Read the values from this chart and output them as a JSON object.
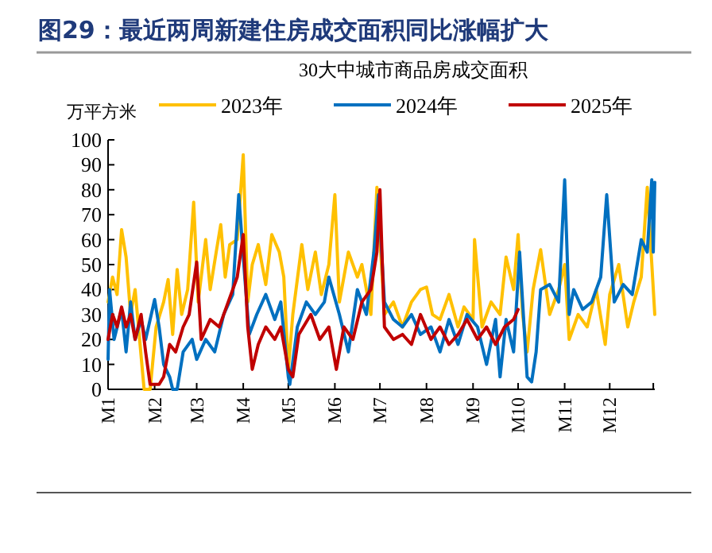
{
  "chart_data": {
    "type": "line",
    "title": "图29：最近两周新建住房成交面积同比涨幅扩大",
    "ylabel": "万平方米",
    "legend_title": "30大中城市商品房成交面积",
    "legend": "top",
    "xlim": [
      "--01-01",
      "--12-31"
    ],
    "ylim": [
      0,
      100
    ],
    "yticks": [
      0,
      10,
      20,
      30,
      40,
      50,
      60,
      70,
      80,
      90,
      100
    ],
    "xticks": [
      {
        "value": "--01-01",
        "label": "M1"
      },
      {
        "value": "--02-01",
        "label": "M2"
      },
      {
        "value": "--03-01",
        "label": "M3"
      },
      {
        "value": "--04-01",
        "label": "M4"
      },
      {
        "value": "--05-01",
        "label": "M5"
      },
      {
        "value": "--06-01",
        "label": "M6"
      },
      {
        "value": "--07-01",
        "label": "M7"
      },
      {
        "value": "--08-01",
        "label": "M8"
      },
      {
        "value": "--09-01",
        "label": "M9"
      },
      {
        "value": "--10-01",
        "label": "M10"
      },
      {
        "value": "--11-01",
        "label": "M11"
      },
      {
        "value": "--12-01",
        "label": "M12"
      },
      {
        "value": "--12-30",
        "label": null
      }
    ],
    "series": [
      {
        "name": "2023年",
        "color": "#ffc000",
        "x": [
          "--01-01",
          "--01-04",
          "--01-07",
          "--01-10",
          "--01-13",
          "--01-16",
          "--01-19",
          "--01-22",
          "--01-25",
          "--01-29",
          "--02-02",
          "--02-07",
          "--02-10",
          "--02-13",
          "--02-16",
          "--02-19",
          "--02-23",
          "--02-27",
          "--03-02",
          "--03-07",
          "--03-10",
          "--03-14",
          "--03-17",
          "--03-20",
          "--03-23",
          "--03-28",
          "--04-01",
          "--04-04",
          "--04-07",
          "--04-11",
          "--04-16",
          "--04-20",
          "--04-25",
          "--04-28",
          "--05-01",
          "--05-04",
          "--05-10",
          "--05-14",
          "--05-19",
          "--05-23",
          "--05-28",
          "--06-01",
          "--06-04",
          "--06-10",
          "--06-16",
          "--06-19",
          "--06-25",
          "--06-29",
          "--07-04",
          "--07-10",
          "--07-16",
          "--07-22",
          "--07-28",
          "--08-01",
          "--08-05",
          "--08-10",
          "--08-16",
          "--08-22",
          "--08-26",
          "--09-01",
          "--09-02",
          "--09-07",
          "--09-13",
          "--09-19",
          "--09-23",
          "--09-28",
          "--10-01",
          "--10-04",
          "--10-07",
          "--10-11",
          "--10-16",
          "--10-22",
          "--10-28",
          "--11-01",
          "--11-04",
          "--11-10",
          "--11-16",
          "--11-22",
          "--11-28",
          "--12-01",
          "--12-07",
          "--12-13",
          "--12-17",
          "--12-22",
          "--12-26",
          "--12-31"
        ],
        "values": [
          35,
          45,
          38,
          64,
          53,
          30,
          40,
          20,
          0,
          0,
          25,
          35,
          44,
          22,
          48,
          30,
          40,
          75,
          35,
          60,
          40,
          55,
          66,
          45,
          58,
          60,
          94,
          35,
          50,
          58,
          42,
          62,
          55,
          45,
          8,
          30,
          58,
          40,
          55,
          38,
          50,
          78,
          35,
          55,
          45,
          50,
          30,
          81,
          30,
          35,
          25,
          35,
          40,
          41,
          30,
          28,
          38,
          25,
          33,
          28,
          60,
          25,
          35,
          30,
          53,
          40,
          62,
          30,
          15,
          40,
          56,
          30,
          40,
          50,
          20,
          30,
          25,
          40,
          18,
          38,
          50,
          25,
          35,
          45,
          81,
          30
        ]
      },
      {
        "name": "2024年",
        "color": "#0070c0",
        "x": [
          "--01-01",
          "--01-02",
          "--01-05",
          "--01-10",
          "--01-13",
          "--01-16",
          "--01-19",
          "--01-23",
          "--01-26",
          "--02-01",
          "--02-04",
          "--02-07",
          "--02-11",
          "--02-13",
          "--02-16",
          "--02-20",
          "--02-26",
          "--03-01",
          "--03-07",
          "--03-13",
          "--03-19",
          "--03-25",
          "--03-29",
          "--04-02",
          "--04-05",
          "--04-10",
          "--04-16",
          "--04-22",
          "--04-26",
          "--05-01",
          "--05-02",
          "--05-07",
          "--05-13",
          "--05-19",
          "--05-25",
          "--05-28",
          "--06-04",
          "--06-10",
          "--06-16",
          "--06-22",
          "--06-27",
          "--06-30",
          "--07-04",
          "--07-10",
          "--07-16",
          "--07-22",
          "--07-28",
          "--08-04",
          "--08-10",
          "--08-16",
          "--08-22",
          "--08-28",
          "--09-04",
          "--09-10",
          "--09-16",
          "--09-19",
          "--09-23",
          "--09-28",
          "--10-02",
          "--10-07",
          "--10-10",
          "--10-13",
          "--10-16",
          "--10-22",
          "--10-28",
          "--11-01",
          "--11-04",
          "--11-07",
          "--11-13",
          "--11-19",
          "--11-25",
          "--11-29",
          "--12-04",
          "--12-10",
          "--12-16",
          "--12-22",
          "--12-26",
          "--12-29",
          "--12-30",
          "--12-31"
        ],
        "values": [
          12,
          40,
          20,
          32,
          15,
          35,
          20,
          28,
          20,
          36,
          25,
          10,
          5,
          0,
          0,
          15,
          20,
          12,
          20,
          15,
          30,
          38,
          78,
          45,
          22,
          30,
          38,
          28,
          35,
          5,
          2,
          25,
          35,
          30,
          35,
          45,
          30,
          15,
          40,
          30,
          55,
          78,
          35,
          28,
          25,
          30,
          22,
          25,
          15,
          28,
          18,
          30,
          25,
          10,
          28,
          5,
          28,
          15,
          55,
          5,
          3,
          15,
          40,
          42,
          35,
          84,
          30,
          40,
          32,
          35,
          45,
          78,
          35,
          42,
          38,
          60,
          55,
          84,
          55,
          83
        ]
      },
      {
        "name": "2025年",
        "color": "#c00000",
        "x": [
          "--01-01",
          "--01-04",
          "--01-07",
          "--01-10",
          "--01-13",
          "--01-16",
          "--01-19",
          "--01-23",
          "--01-26",
          "--01-29",
          "--02-04",
          "--02-07",
          "--02-11",
          "--02-15",
          "--02-20",
          "--02-24",
          "--03-01",
          "--03-04",
          "--03-10",
          "--03-16",
          "--03-22",
          "--03-28",
          "--04-01",
          "--04-04",
          "--04-07",
          "--04-11",
          "--04-16",
          "--04-22",
          "--04-26",
          "--05-01",
          "--05-04",
          "--05-08",
          "--05-16",
          "--05-22",
          "--05-28",
          "--06-02",
          "--06-07",
          "--06-13",
          "--06-19",
          "--06-25",
          "--06-29",
          "--07-01",
          "--07-04",
          "--07-10",
          "--07-16",
          "--07-22",
          "--07-28",
          "--08-04",
          "--08-10",
          "--08-16",
          "--08-22",
          "--08-28",
          "--09-04",
          "--09-10",
          "--09-16",
          "--09-22",
          "--09-28",
          "--10-01"
        ],
        "values": [
          20,
          30,
          25,
          33,
          25,
          30,
          20,
          30,
          15,
          2,
          2,
          5,
          18,
          15,
          25,
          30,
          51,
          20,
          28,
          25,
          35,
          45,
          62,
          25,
          8,
          18,
          25,
          20,
          25,
          8,
          5,
          22,
          30,
          20,
          25,
          8,
          25,
          20,
          35,
          40,
          55,
          80,
          25,
          20,
          22,
          18,
          30,
          20,
          25,
          18,
          22,
          28,
          20,
          25,
          18,
          25,
          28,
          32
        ]
      }
    ]
  }
}
